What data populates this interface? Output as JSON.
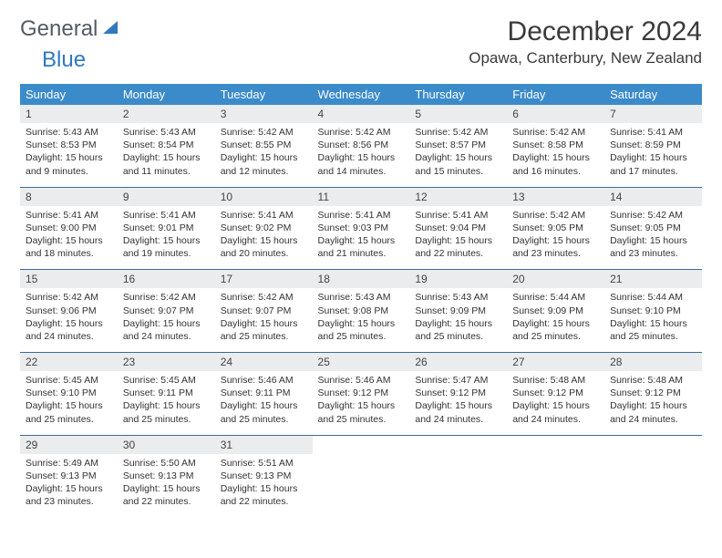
{
  "brand": {
    "part1": "General",
    "part2": "Blue"
  },
  "title": "December 2024",
  "location": "Opawa, Canterbury, New Zealand",
  "headers": [
    "Sunday",
    "Monday",
    "Tuesday",
    "Wednesday",
    "Thursday",
    "Friday",
    "Saturday"
  ],
  "colors": {
    "header_bg": "#3b8bca",
    "header_fg": "#ffffff",
    "daynum_bg": "#ebeced",
    "rule": "#3b6b94",
    "brand_gray": "#555b63",
    "brand_blue": "#2f79bd"
  },
  "days": [
    {
      "n": "1",
      "sr": "5:43 AM",
      "ss": "8:53 PM",
      "dl": "15 hours and 9 minutes."
    },
    {
      "n": "2",
      "sr": "5:43 AM",
      "ss": "8:54 PM",
      "dl": "15 hours and 11 minutes."
    },
    {
      "n": "3",
      "sr": "5:42 AM",
      "ss": "8:55 PM",
      "dl": "15 hours and 12 minutes."
    },
    {
      "n": "4",
      "sr": "5:42 AM",
      "ss": "8:56 PM",
      "dl": "15 hours and 14 minutes."
    },
    {
      "n": "5",
      "sr": "5:42 AM",
      "ss": "8:57 PM",
      "dl": "15 hours and 15 minutes."
    },
    {
      "n": "6",
      "sr": "5:42 AM",
      "ss": "8:58 PM",
      "dl": "15 hours and 16 minutes."
    },
    {
      "n": "7",
      "sr": "5:41 AM",
      "ss": "8:59 PM",
      "dl": "15 hours and 17 minutes."
    },
    {
      "n": "8",
      "sr": "5:41 AM",
      "ss": "9:00 PM",
      "dl": "15 hours and 18 minutes."
    },
    {
      "n": "9",
      "sr": "5:41 AM",
      "ss": "9:01 PM",
      "dl": "15 hours and 19 minutes."
    },
    {
      "n": "10",
      "sr": "5:41 AM",
      "ss": "9:02 PM",
      "dl": "15 hours and 20 minutes."
    },
    {
      "n": "11",
      "sr": "5:41 AM",
      "ss": "9:03 PM",
      "dl": "15 hours and 21 minutes."
    },
    {
      "n": "12",
      "sr": "5:41 AM",
      "ss": "9:04 PM",
      "dl": "15 hours and 22 minutes."
    },
    {
      "n": "13",
      "sr": "5:42 AM",
      "ss": "9:05 PM",
      "dl": "15 hours and 23 minutes."
    },
    {
      "n": "14",
      "sr": "5:42 AM",
      "ss": "9:05 PM",
      "dl": "15 hours and 23 minutes."
    },
    {
      "n": "15",
      "sr": "5:42 AM",
      "ss": "9:06 PM",
      "dl": "15 hours and 24 minutes."
    },
    {
      "n": "16",
      "sr": "5:42 AM",
      "ss": "9:07 PM",
      "dl": "15 hours and 24 minutes."
    },
    {
      "n": "17",
      "sr": "5:42 AM",
      "ss": "9:07 PM",
      "dl": "15 hours and 25 minutes."
    },
    {
      "n": "18",
      "sr": "5:43 AM",
      "ss": "9:08 PM",
      "dl": "15 hours and 25 minutes."
    },
    {
      "n": "19",
      "sr": "5:43 AM",
      "ss": "9:09 PM",
      "dl": "15 hours and 25 minutes."
    },
    {
      "n": "20",
      "sr": "5:44 AM",
      "ss": "9:09 PM",
      "dl": "15 hours and 25 minutes."
    },
    {
      "n": "21",
      "sr": "5:44 AM",
      "ss": "9:10 PM",
      "dl": "15 hours and 25 minutes."
    },
    {
      "n": "22",
      "sr": "5:45 AM",
      "ss": "9:10 PM",
      "dl": "15 hours and 25 minutes."
    },
    {
      "n": "23",
      "sr": "5:45 AM",
      "ss": "9:11 PM",
      "dl": "15 hours and 25 minutes."
    },
    {
      "n": "24",
      "sr": "5:46 AM",
      "ss": "9:11 PM",
      "dl": "15 hours and 25 minutes."
    },
    {
      "n": "25",
      "sr": "5:46 AM",
      "ss": "9:12 PM",
      "dl": "15 hours and 25 minutes."
    },
    {
      "n": "26",
      "sr": "5:47 AM",
      "ss": "9:12 PM",
      "dl": "15 hours and 24 minutes."
    },
    {
      "n": "27",
      "sr": "5:48 AM",
      "ss": "9:12 PM",
      "dl": "15 hours and 24 minutes."
    },
    {
      "n": "28",
      "sr": "5:48 AM",
      "ss": "9:12 PM",
      "dl": "15 hours and 24 minutes."
    },
    {
      "n": "29",
      "sr": "5:49 AM",
      "ss": "9:13 PM",
      "dl": "15 hours and 23 minutes."
    },
    {
      "n": "30",
      "sr": "5:50 AM",
      "ss": "9:13 PM",
      "dl": "15 hours and 22 minutes."
    },
    {
      "n": "31",
      "sr": "5:51 AM",
      "ss": "9:13 PM",
      "dl": "15 hours and 22 minutes."
    }
  ],
  "labels": {
    "sunrise": "Sunrise:",
    "sunset": "Sunset:",
    "daylight": "Daylight:"
  }
}
